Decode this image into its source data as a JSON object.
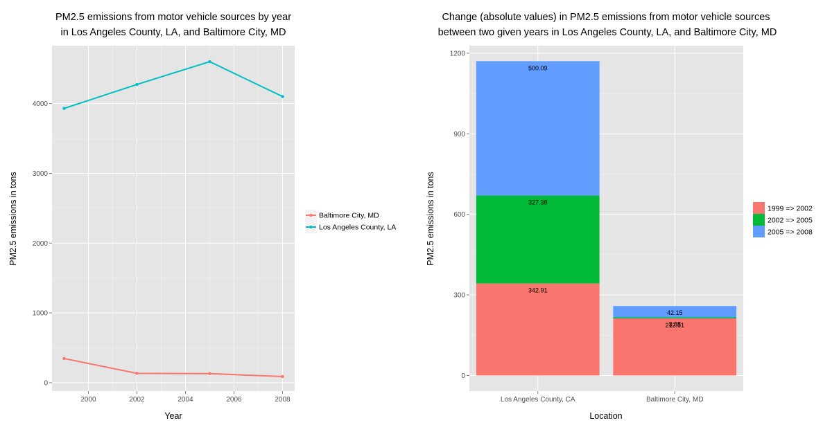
{
  "chart_data": [
    {
      "type": "line",
      "title_lines": [
        "PM2.5 emissions from motor vehicle sources by year",
        "in Los Angeles County, LA, and Baltimore City, MD"
      ],
      "xlabel": "Year",
      "ylabel": "PM2.5 emissions in tons",
      "xlim": [
        1998.5,
        2008.5
      ],
      "ylim": [
        -120,
        4830
      ],
      "x_ticks": [
        2000,
        2002,
        2004,
        2006,
        2008
      ],
      "y_ticks": [
        0,
        1000,
        2000,
        3000,
        4000
      ],
      "x": [
        1999,
        2002,
        2005,
        2008
      ],
      "grid": true,
      "legend_position": "right",
      "series": [
        {
          "name": "Baltimore City, MD",
          "color": "#F8766D",
          "values": [
            346.82,
            134.31,
            130.43,
            88.28
          ]
        },
        {
          "name": "Los Angeles County, LA",
          "color": "#00BFC4",
          "values": [
            3931.12,
            4274.03,
            4601.41,
            4101.32
          ]
        }
      ]
    },
    {
      "type": "bar",
      "stacked": true,
      "title_lines": [
        "Change (absolute values) in PM2.5 emissions from motor vehicle sources",
        "between two given years in Los Angeles County, LA, and Baltimore City, MD"
      ],
      "xlabel": "Location",
      "ylabel": "PM2.5 emissions in tons",
      "categories": [
        "Los Angeles County, CA",
        "Baltimore City, MD"
      ],
      "ylim": [
        -58,
        1228
      ],
      "y_ticks": [
        0,
        300,
        600,
        900,
        1200
      ],
      "grid": true,
      "legend_position": "right",
      "series": [
        {
          "name": "1999 => 2002",
          "color": "#F8766D",
          "values": [
            342.91,
            212.51
          ],
          "labels": [
            "342.91",
            "212.51"
          ]
        },
        {
          "name": "2002 => 2005",
          "color": "#00BA38",
          "values": [
            327.38,
            3.88
          ],
          "labels": [
            "327.38",
            "3.88"
          ]
        },
        {
          "name": "2005 => 2008",
          "color": "#619CFF",
          "values": [
            500.09,
            42.15
          ],
          "labels": [
            "500.09",
            "42.15"
          ]
        }
      ]
    }
  ]
}
